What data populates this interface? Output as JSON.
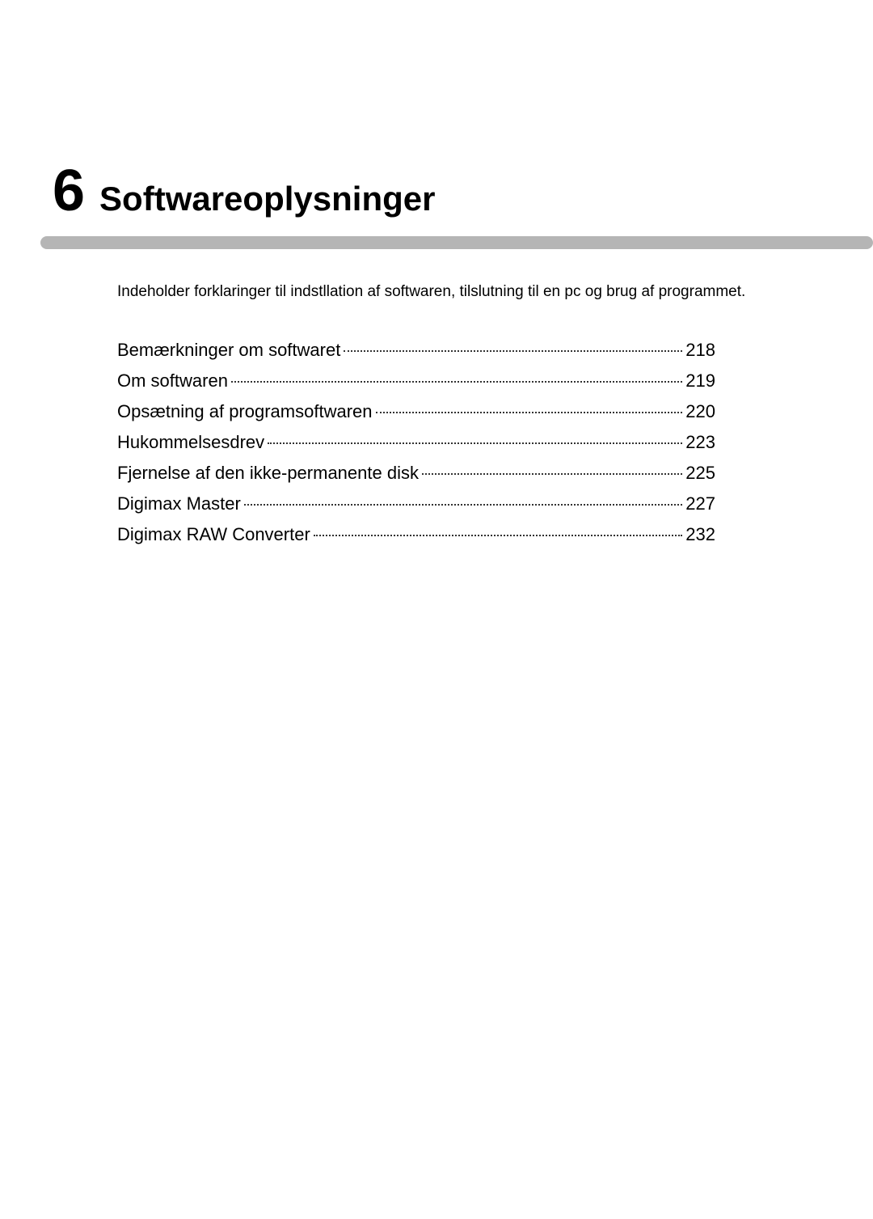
{
  "chapter": {
    "number": "6",
    "title": "Softwareoplysninger"
  },
  "intro": "Indeholder forklaringer til indstllation af softwaren, tilslutning til en pc og brug af programmet.",
  "toc": [
    {
      "label": "Bemærkninger om softwaret",
      "page": "218"
    },
    {
      "label": "Om softwaren",
      "page": "219"
    },
    {
      "label": "Opsætning af programsoftwaren",
      "page": "220"
    },
    {
      "label": "Hukommelsesdrev",
      "page": "223"
    },
    {
      "label": "Fjernelse af den ikke-permanente disk",
      "page": "225"
    },
    {
      "label": "Digimax Master",
      "page": "227"
    },
    {
      "label": "Digimax RAW Converter",
      "page": "232"
    }
  ],
  "colors": {
    "background": "#ffffff",
    "text": "#000000",
    "divider": "#b5b5b5"
  }
}
